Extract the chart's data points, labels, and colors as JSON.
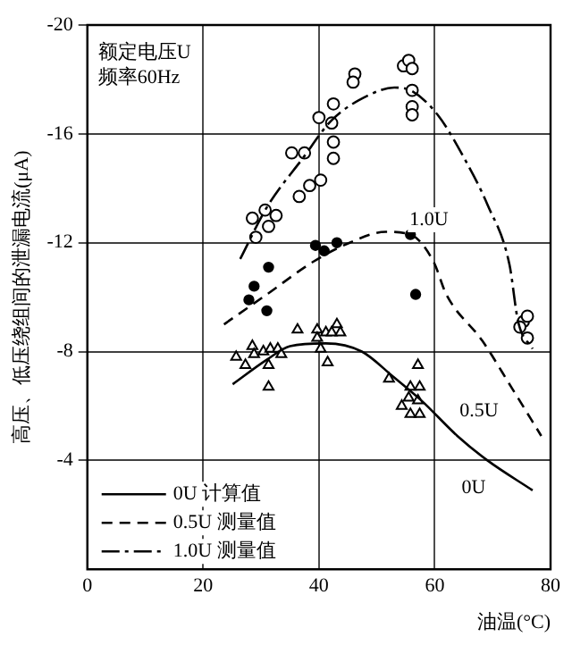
{
  "chart_data": {
    "type": "line",
    "xlabel": "油温(°C)",
    "ylabel": "高压、低压绕组间的泄漏电流(μA)",
    "xlim": [
      0,
      80
    ],
    "xticks": [
      0,
      20,
      40,
      60,
      80
    ],
    "ylim": [
      0,
      -20
    ],
    "yticks": [
      -4,
      -8,
      -12,
      -16,
      -20
    ],
    "grid": true,
    "legend": "bottom left",
    "tick_labels": true,
    "annotations": [
      "额定电压U\n频率60Hz",
      "1.0U",
      "0.5U",
      "0U"
    ],
    "series": [
      {
        "name": "0U 计算值",
        "color": "#000000",
        "line_style": "solid",
        "marker": "none",
        "x": [
          25.1,
          31,
          35,
          41.2,
          47.4,
          52.7,
          57.7,
          63.9,
          69.1,
          76.9
        ],
        "values": [
          -6.8,
          -7.7,
          -8.2,
          -8.3,
          -8,
          -7.1,
          -6.2,
          -4.9,
          -4,
          -2.9
        ]
      },
      {
        "name": "0.5U 测量值",
        "color": "#000000",
        "line_style": "dashed",
        "marker": "none",
        "x": [
          23.6,
          31,
          39,
          45.3,
          51.5,
          55.8,
          59.8,
          62,
          68.2,
          73.2,
          78.4
        ],
        "values": [
          -9,
          -10.1,
          -11.3,
          -12,
          -12.4,
          -12.3,
          -11.3,
          -10.1,
          -8.4,
          -6.7,
          -4.9
        ]
      },
      {
        "name": "1.0U 测量值",
        "color": "#000000",
        "line_style": "dashdot",
        "marker": "none",
        "x": [
          26.4,
          31,
          37.2,
          42.2,
          48.4,
          53,
          55.8,
          60.5,
          65.1,
          69.1,
          72.9,
          74.4,
          76.9
        ],
        "values": [
          -11.4,
          -13.3,
          -15.1,
          -16.5,
          -17.4,
          -17.7,
          -17.6,
          -16.7,
          -15.1,
          -13.4,
          -11.2,
          -9.1,
          -8.1
        ]
      },
      {
        "type": "scatter",
        "color": "#000000",
        "marker": "circle",
        "x": [
          28.5,
          30.7,
          32.6,
          31.3,
          29.1,
          36.6,
          38.4,
          40.3,
          35.3,
          37.5,
          42.5,
          42.5,
          40,
          42.2,
          42.5,
          46.2,
          45.9,
          54.6,
          55.5,
          56.1,
          56.1,
          56.1,
          56.1,
          75.3,
          76,
          74.7,
          76
        ],
        "values": [
          -12.9,
          -13.2,
          -13,
          -12.6,
          -12.2,
          -13.7,
          -14.1,
          -14.3,
          -15.3,
          -15.3,
          -15.7,
          -15.1,
          -16.6,
          -16.4,
          -17.1,
          -18.2,
          -17.9,
          -18.5,
          -18.7,
          -18.4,
          -17.6,
          -17,
          -16.7,
          -9.1,
          -9.3,
          -8.9,
          -8.5
        ]
      },
      {
        "type": "scatter",
        "color": "#000000",
        "marker": "filled_circle",
        "x": [
          31.3,
          39.4,
          40.9,
          43.1,
          55.8,
          28.8,
          27.9,
          31,
          56.7
        ],
        "values": [
          -11.1,
          -11.9,
          -11.7,
          -12,
          -12.3,
          -10.4,
          -9.9,
          -9.5,
          -10.1
        ]
      },
      {
        "type": "scatter",
        "color": "#000000",
        "marker": "triangle",
        "x": [
          25.7,
          27.3,
          28.5,
          28.8,
          30.4,
          31.6,
          32.9,
          33.5,
          31.3,
          31.3,
          36.3,
          39.7,
          39.7,
          41.2,
          42.2,
          43.1,
          43.7,
          40.3,
          41.5,
          52.1,
          57.1,
          55.8,
          57.4,
          55.5,
          57.1,
          54.3,
          55.8,
          57.4
        ],
        "values": [
          -7.8,
          -7.5,
          -8.2,
          -7.9,
          -8,
          -8.1,
          -8.1,
          -7.9,
          -7.5,
          -6.7,
          -8.8,
          -8.8,
          -8.5,
          -8.7,
          -8.7,
          -9,
          -8.7,
          -8.1,
          -7.6,
          -7,
          -7.5,
          -6.7,
          -6.7,
          -6.3,
          -6.2,
          -6,
          -5.7,
          -5.7
        ]
      }
    ]
  }
}
